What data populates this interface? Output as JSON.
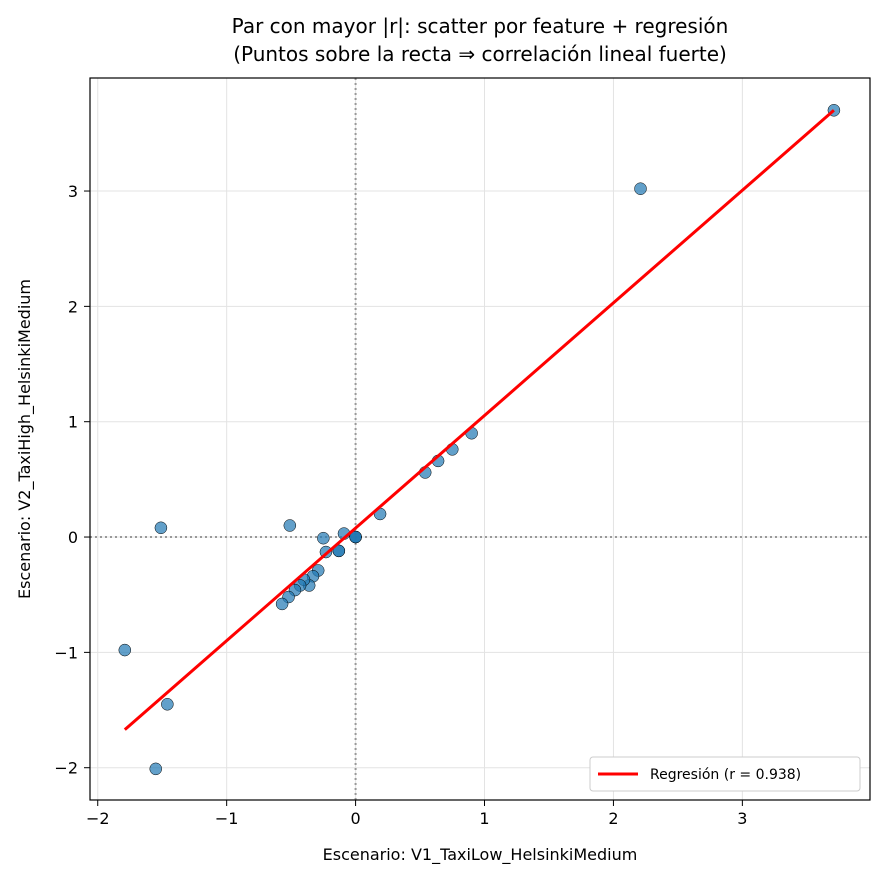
{
  "chart_data": {
    "type": "scatter",
    "title": "Par con mayor |r|: scatter por feature + regresión",
    "subtitle": "(Puntos sobre la recta ⇒ correlación lineal fuerte)",
    "xlabel": "Escenario: V1_TaxiLow_HelsinkiMedium",
    "ylabel": "Escenario: V2_TaxiHigh_HelsinkiMedium",
    "xlim": [
      -2.06,
      3.99
    ],
    "ylim": [
      -2.28,
      3.98
    ],
    "xticks": [
      -2,
      -1,
      0,
      1,
      2,
      3
    ],
    "yticks": [
      -2,
      -1,
      0,
      1,
      2,
      3
    ],
    "xtick_labels": [
      "−2",
      "−1",
      "0",
      "1",
      "2",
      "3"
    ],
    "ytick_labels": [
      "−2",
      "−1",
      "0",
      "1",
      "2",
      "3"
    ],
    "grid": true,
    "reference_lines": {
      "x": 0,
      "y": 0,
      "style": "dotted",
      "color": "#999999"
    },
    "point_color": "#1f77b4",
    "points": [
      [
        3.71,
        3.7
      ],
      [
        2.21,
        3.02
      ],
      [
        0.9,
        0.9
      ],
      [
        0.75,
        0.76
      ],
      [
        0.64,
        0.66
      ],
      [
        0.54,
        0.56
      ],
      [
        0.19,
        0.2
      ],
      [
        -0.09,
        0.03
      ],
      [
        0,
        0
      ],
      [
        0,
        0
      ],
      [
        0,
        0
      ],
      [
        -0.51,
        0.1
      ],
      [
        -0.25,
        -0.01
      ],
      [
        -0.23,
        -0.13
      ],
      [
        -0.13,
        -0.12
      ],
      [
        -0.13,
        -0.12
      ],
      [
        -0.29,
        -0.29
      ],
      [
        -0.33,
        -0.34
      ],
      [
        -0.36,
        -0.42
      ],
      [
        -0.4,
        -0.37
      ],
      [
        -0.43,
        -0.42
      ],
      [
        -0.47,
        -0.46
      ],
      [
        -0.52,
        -0.52
      ],
      [
        -0.57,
        -0.58
      ],
      [
        -1.51,
        0.08
      ],
      [
        -1.79,
        -0.98
      ],
      [
        -1.46,
        -1.45
      ],
      [
        -1.55,
        -2.01
      ]
    ],
    "regression": {
      "x": [
        -1.79,
        3.71
      ],
      "y": [
        -1.67,
        3.7
      ],
      "color": "#ff0000"
    },
    "legend": {
      "position": "bottom-right",
      "entries": [
        "Regresión (r = 0.938)"
      ]
    }
  }
}
